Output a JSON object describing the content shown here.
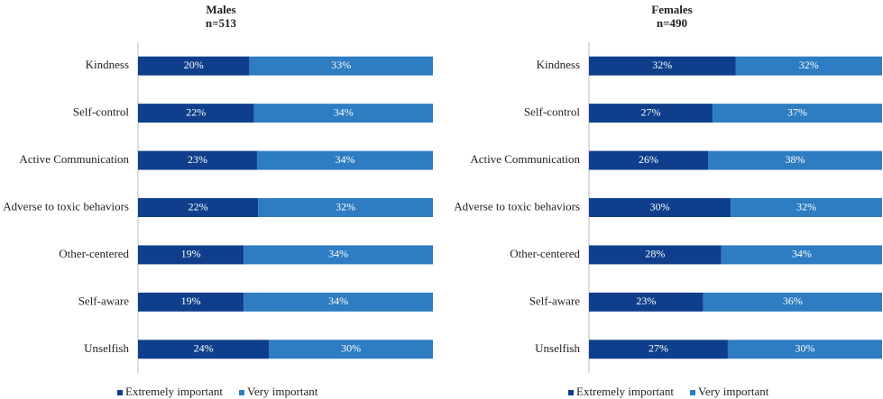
{
  "chart_data": [
    {
      "type": "bar",
      "orientation": "horizontal",
      "stacked": true,
      "percent_stacked": true,
      "title": "Males",
      "subtitle": "n=513",
      "categories": [
        "Kindness",
        "Self-control",
        "Active Communication",
        "Adverse to toxic behaviors",
        "Other-centered",
        "Self-aware",
        "Unselfish"
      ],
      "series": [
        {
          "name": "Extremely important",
          "color": "#0f3f8c",
          "values": [
            20,
            22,
            23,
            22,
            19,
            19,
            24
          ],
          "value_labels": [
            "20%",
            "22%",
            "23%",
            "22%",
            "19%",
            "19%",
            "24%"
          ]
        },
        {
          "name": "Very important",
          "color": "#2e7cc2",
          "values": [
            33,
            34,
            34,
            32,
            34,
            34,
            30
          ],
          "value_labels": [
            "33%",
            "34%",
            "34%",
            "32%",
            "34%",
            "34%",
            "30%"
          ]
        }
      ],
      "legend": "bottom"
    },
    {
      "type": "bar",
      "orientation": "horizontal",
      "stacked": true,
      "percent_stacked": true,
      "title": "Females",
      "subtitle": "n=490",
      "categories": [
        "Kindness",
        "Self-control",
        "Active Communication",
        "Adverse to toxic behaviors",
        "Other-centered",
        "Self-aware",
        "Unselfish"
      ],
      "series": [
        {
          "name": "Extremely important",
          "color": "#0f3f8c",
          "values": [
            32,
            27,
            26,
            30,
            28,
            23,
            27
          ],
          "value_labels": [
            "32%",
            "27%",
            "26%",
            "30%",
            "28%",
            "23%",
            "27%"
          ]
        },
        {
          "name": "Very important",
          "color": "#2e7cc2",
          "values": [
            32,
            37,
            38,
            32,
            34,
            36,
            30
          ],
          "value_labels": [
            "32%",
            "37%",
            "38%",
            "32%",
            "34%",
            "36%",
            "30%"
          ]
        }
      ],
      "legend": "bottom"
    }
  ]
}
